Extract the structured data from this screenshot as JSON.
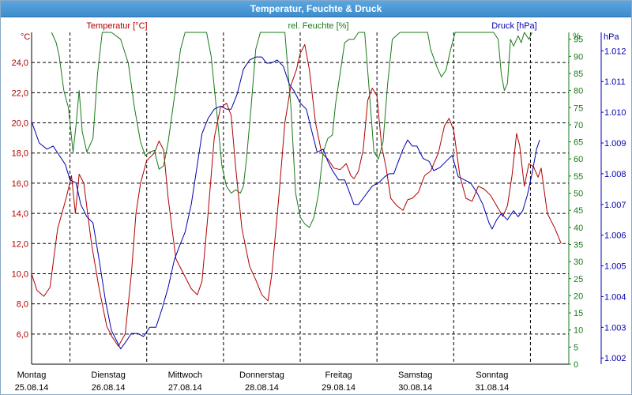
{
  "window": {
    "title": "Temperatur, Feuchte & Druck"
  },
  "chart_data": {
    "type": "line",
    "title": "Temperatur, Feuchte & Druck",
    "axes": {
      "temperature": {
        "label": "Temperatur [°C]",
        "unit": "°C",
        "range": [
          4.0,
          26.0
        ],
        "ticks": [
          "6,0",
          "8,0",
          "10,0",
          "12,0",
          "14,0",
          "16,0",
          "18,0",
          "20,0",
          "22,0",
          "24,0"
        ]
      },
      "humidity": {
        "label": "rel. Feuchte [%]",
        "unit": "%",
        "range": [
          0,
          97
        ],
        "ticks": [
          "0",
          "5",
          "10",
          "15",
          "20",
          "25",
          "30",
          "35",
          "40",
          "45",
          "50",
          "55",
          "60",
          "65",
          "70",
          "75",
          "80",
          "85",
          "90",
          "95"
        ]
      },
      "pressure": {
        "label": "Druck [hPa]",
        "unit": "hPa",
        "range": [
          1.0018,
          1.0126
        ],
        "ticks": [
          "1.002",
          "1.003",
          "1.004",
          "1.005",
          "1.006",
          "1.007",
          "1.008",
          "1.009",
          "1.010",
          "1.011",
          "1.012"
        ]
      }
    },
    "x_range_days": [
      0,
      7
    ],
    "day_labels": [
      {
        "day": "Montag",
        "date": "25.08.14"
      },
      {
        "day": "Dienstag",
        "date": "26.08.14"
      },
      {
        "day": "Mittwoch",
        "date": "27.08.14"
      },
      {
        "day": "Donnerstag",
        "date": "28.08.14"
      },
      {
        "day": "Freitag",
        "date": "29.08.14"
      },
      {
        "day": "Samstag",
        "date": "30.08.14"
      },
      {
        "day": "Sonntag",
        "date": "31.08.14"
      }
    ],
    "grid": true,
    "colors": {
      "temperature": "#b00000",
      "humidity": "#1a7a1a",
      "pressure": "#0000b0",
      "grid": "#000000"
    },
    "series": [
      {
        "name": "Temperatur [°C]",
        "axis": "temperature",
        "points": [
          [
            0,
            10
          ],
          [
            0.07,
            8.9
          ],
          [
            0.16,
            8.5
          ],
          [
            0.24,
            9.1
          ],
          [
            0.34,
            13
          ],
          [
            0.45,
            15
          ],
          [
            0.52,
            16.5
          ],
          [
            0.57,
            14
          ],
          [
            0.62,
            16.6
          ],
          [
            0.68,
            16
          ],
          [
            0.78,
            12
          ],
          [
            0.88,
            9
          ],
          [
            0.98,
            6.5
          ],
          [
            1.05,
            5.8
          ],
          [
            1.13,
            5.2
          ],
          [
            1.22,
            6
          ],
          [
            1.3,
            10
          ],
          [
            1.36,
            14
          ],
          [
            1.42,
            16
          ],
          [
            1.5,
            17.5
          ],
          [
            1.6,
            18
          ],
          [
            1.66,
            18.8
          ],
          [
            1.72,
            18.2
          ],
          [
            1.78,
            15
          ],
          [
            1.88,
            11
          ],
          [
            1.98,
            10
          ],
          [
            2.08,
            9
          ],
          [
            2.16,
            8.6
          ],
          [
            2.22,
            9.5
          ],
          [
            2.3,
            14
          ],
          [
            2.38,
            19
          ],
          [
            2.46,
            21
          ],
          [
            2.54,
            21.3
          ],
          [
            2.6,
            20.5
          ],
          [
            2.66,
            17
          ],
          [
            2.74,
            13
          ],
          [
            2.84,
            10.5
          ],
          [
            2.92,
            9.6
          ],
          [
            3.0,
            8.6
          ],
          [
            3.08,
            8.2
          ],
          [
            3.13,
            10
          ],
          [
            3.22,
            15
          ],
          [
            3.3,
            20
          ],
          [
            3.38,
            22.5
          ],
          [
            3.45,
            23.5
          ],
          [
            3.5,
            24.6
          ],
          [
            3.56,
            25.2
          ],
          [
            3.62,
            23.5
          ],
          [
            3.7,
            20
          ],
          [
            3.78,
            18
          ],
          [
            3.86,
            17.6
          ],
          [
            3.94,
            17
          ],
          [
            4.02,
            16.9
          ],
          [
            4.1,
            17.3
          ],
          [
            4.16,
            16.5
          ],
          [
            4.2,
            16.3
          ],
          [
            4.26,
            16.8
          ],
          [
            4.32,
            18.2
          ],
          [
            4.38,
            21.5
          ],
          [
            4.44,
            22.3
          ],
          [
            4.5,
            21.8
          ],
          [
            4.56,
            18.5
          ],
          [
            4.62,
            17
          ],
          [
            4.68,
            15
          ],
          [
            4.76,
            14.5
          ],
          [
            4.84,
            14.2
          ],
          [
            4.9,
            14.9
          ],
          [
            4.96,
            15
          ],
          [
            5.04,
            15.4
          ],
          [
            5.12,
            16.5
          ],
          [
            5.2,
            16.8
          ],
          [
            5.3,
            18
          ],
          [
            5.38,
            19.8
          ],
          [
            5.44,
            20.3
          ],
          [
            5.5,
            19.5
          ],
          [
            5.58,
            16.5
          ],
          [
            5.66,
            15
          ],
          [
            5.74,
            14.8
          ],
          [
            5.82,
            15.8
          ],
          [
            5.9,
            15.6
          ],
          [
            5.98,
            15.2
          ],
          [
            6.06,
            14.5
          ],
          [
            6.14,
            13.8
          ],
          [
            6.2,
            14.5
          ],
          [
            6.26,
            16.5
          ],
          [
            6.32,
            19.3
          ],
          [
            6.36,
            18.5
          ],
          [
            6.42,
            15.8
          ],
          [
            6.48,
            17.3
          ],
          [
            6.54,
            17.1
          ],
          [
            6.6,
            16.4
          ],
          [
            6.64,
            17
          ],
          [
            6.72,
            14
          ],
          [
            6.82,
            13
          ],
          [
            6.9,
            12
          ]
        ]
      },
      {
        "name": "rel. Feuchte [%]",
        "axis": "humidity",
        "points": [
          [
            0.26,
            97
          ],
          [
            0.32,
            94
          ],
          [
            0.36,
            90
          ],
          [
            0.42,
            80
          ],
          [
            0.48,
            75
          ],
          [
            0.54,
            62
          ],
          [
            0.58,
            70
          ],
          [
            0.62,
            80
          ],
          [
            0.66,
            68
          ],
          [
            0.72,
            62
          ],
          [
            0.8,
            66
          ],
          [
            0.86,
            85
          ],
          [
            0.92,
            97
          ],
          [
            1.04,
            97
          ],
          [
            1.16,
            95
          ],
          [
            1.26,
            88
          ],
          [
            1.34,
            75
          ],
          [
            1.42,
            65
          ],
          [
            1.48,
            61
          ],
          [
            1.54,
            62
          ],
          [
            1.6,
            62.5
          ],
          [
            1.66,
            57
          ],
          [
            1.72,
            58
          ],
          [
            1.78,
            65
          ],
          [
            1.86,
            78
          ],
          [
            1.94,
            92
          ],
          [
            2.0,
            97
          ],
          [
            2.28,
            97
          ],
          [
            2.34,
            90
          ],
          [
            2.42,
            72
          ],
          [
            2.48,
            58
          ],
          [
            2.54,
            52
          ],
          [
            2.6,
            50
          ],
          [
            2.66,
            51
          ],
          [
            2.72,
            50
          ],
          [
            2.76,
            52
          ],
          [
            2.8,
            60
          ],
          [
            2.86,
            75
          ],
          [
            2.92,
            92
          ],
          [
            2.98,
            97
          ],
          [
            3.3,
            97
          ],
          [
            3.38,
            75
          ],
          [
            3.44,
            50
          ],
          [
            3.5,
            43
          ],
          [
            3.56,
            41
          ],
          [
            3.62,
            40
          ],
          [
            3.68,
            43
          ],
          [
            3.74,
            50
          ],
          [
            3.8,
            62
          ],
          [
            3.86,
            66
          ],
          [
            3.92,
            67
          ],
          [
            3.96,
            76
          ],
          [
            4.02,
            85
          ],
          [
            4.08,
            94
          ],
          [
            4.14,
            95
          ],
          [
            4.2,
            95
          ],
          [
            4.26,
            97
          ],
          [
            4.34,
            97
          ],
          [
            4.4,
            80
          ],
          [
            4.46,
            62
          ],
          [
            4.52,
            60
          ],
          [
            4.58,
            65
          ],
          [
            4.64,
            82
          ],
          [
            4.7,
            95
          ],
          [
            4.8,
            97
          ],
          [
            5.16,
            97
          ],
          [
            5.2,
            92
          ],
          [
            5.28,
            87
          ],
          [
            5.34,
            84
          ],
          [
            5.4,
            86
          ],
          [
            5.46,
            92
          ],
          [
            5.52,
            97
          ],
          [
            6.02,
            97
          ],
          [
            6.08,
            95
          ],
          [
            6.12,
            85
          ],
          [
            6.16,
            80
          ],
          [
            6.2,
            82
          ],
          [
            6.24,
            95
          ],
          [
            6.28,
            93
          ],
          [
            6.34,
            96
          ],
          [
            6.38,
            94
          ],
          [
            6.42,
            97
          ],
          [
            6.48,
            95
          ],
          [
            6.52,
            97
          ]
        ]
      },
      {
        "name": "Druck [hPa]",
        "axis": "pressure",
        "points": [
          [
            0,
            1.0097
          ],
          [
            0.1,
            1.009
          ],
          [
            0.2,
            1.0088
          ],
          [
            0.28,
            1.0089
          ],
          [
            0.36,
            1.0086
          ],
          [
            0.44,
            1.0083
          ],
          [
            0.5,
            1.0078
          ],
          [
            0.58,
            1.0077
          ],
          [
            0.64,
            1.007
          ],
          [
            0.72,
            1.0066
          ],
          [
            0.8,
            1.0064
          ],
          [
            0.88,
            1.0052
          ],
          [
            0.96,
            1.0039
          ],
          [
            1.04,
            1.0029
          ],
          [
            1.1,
            1.0026
          ],
          [
            1.16,
            1.0023
          ],
          [
            1.22,
            1.0025
          ],
          [
            1.3,
            1.0028
          ],
          [
            1.38,
            1.0028
          ],
          [
            1.46,
            1.0027
          ],
          [
            1.54,
            1.003
          ],
          [
            1.62,
            1.003
          ],
          [
            1.7,
            1.0036
          ],
          [
            1.78,
            1.0043
          ],
          [
            1.86,
            1.0052
          ],
          [
            1.92,
            1.0056
          ],
          [
            2.0,
            1.0061
          ],
          [
            2.08,
            1.007
          ],
          [
            2.16,
            1.0083
          ],
          [
            2.22,
            1.0093
          ],
          [
            2.3,
            1.0098
          ],
          [
            2.38,
            1.0101
          ],
          [
            2.46,
            1.0102
          ],
          [
            2.54,
            1.0101
          ],
          [
            2.6,
            1.0101
          ],
          [
            2.68,
            1.0106
          ],
          [
            2.76,
            1.0114
          ],
          [
            2.84,
            1.0117
          ],
          [
            2.92,
            1.0118
          ],
          [
            3.0,
            1.0118
          ],
          [
            3.06,
            1.0116
          ],
          [
            3.12,
            1.0116
          ],
          [
            3.2,
            1.0117
          ],
          [
            3.28,
            1.0115
          ],
          [
            3.36,
            1.0109
          ],
          [
            3.42,
            1.0107
          ],
          [
            3.5,
            1.0103
          ],
          [
            3.58,
            1.0101
          ],
          [
            3.66,
            1.0093
          ],
          [
            3.72,
            1.0087
          ],
          [
            3.8,
            1.0088
          ],
          [
            3.86,
            1.0084
          ],
          [
            3.92,
            1.0081
          ],
          [
            4.0,
            1.0078
          ],
          [
            4.08,
            1.0078
          ],
          [
            4.14,
            1.0074
          ],
          [
            4.2,
            1.007
          ],
          [
            4.26,
            1.007
          ],
          [
            4.32,
            1.0072
          ],
          [
            4.38,
            1.0074
          ],
          [
            4.44,
            1.0076
          ],
          [
            4.52,
            1.0077
          ],
          [
            4.6,
            1.0079
          ],
          [
            4.66,
            1.008
          ],
          [
            4.72,
            1.008
          ],
          [
            4.78,
            1.0084
          ],
          [
            4.84,
            1.0088
          ],
          [
            4.9,
            1.0091
          ],
          [
            4.96,
            1.0089
          ],
          [
            5.02,
            1.0089
          ],
          [
            5.1,
            1.0085
          ],
          [
            5.18,
            1.0084
          ],
          [
            5.24,
            1.0081
          ],
          [
            5.32,
            1.0082
          ],
          [
            5.4,
            1.0084
          ],
          [
            5.48,
            1.0086
          ],
          [
            5.56,
            1.0079
          ],
          [
            5.64,
            1.0078
          ],
          [
            5.72,
            1.0077
          ],
          [
            5.8,
            1.0074
          ],
          [
            5.88,
            1.007
          ],
          [
            5.96,
            1.0064
          ],
          [
            6.0,
            1.0062
          ],
          [
            6.06,
            1.0065
          ],
          [
            6.12,
            1.0067
          ],
          [
            6.2,
            1.0065
          ],
          [
            6.28,
            1.0068
          ],
          [
            6.34,
            1.0066
          ],
          [
            6.4,
            1.0068
          ],
          [
            6.46,
            1.0073
          ],
          [
            6.52,
            1.008
          ],
          [
            6.58,
            1.0088
          ],
          [
            6.62,
            1.0091
          ]
        ]
      }
    ]
  }
}
